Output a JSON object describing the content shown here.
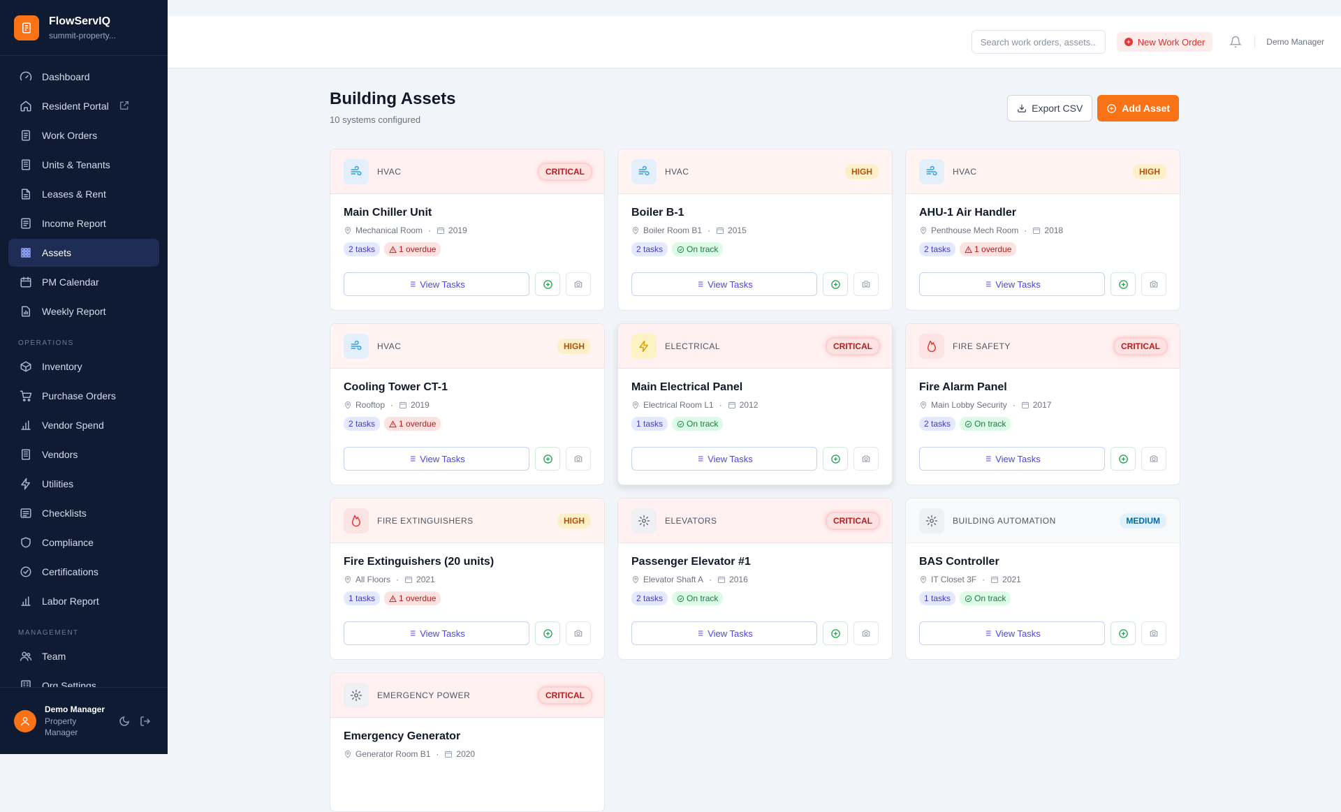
{
  "brand": {
    "name": "FlowServIQ",
    "subtitle": "summit-property..."
  },
  "nav": {
    "items": [
      {
        "label": "Dashboard",
        "icon": "gauge-icon"
      },
      {
        "label": "Resident Portal",
        "icon": "home-icon",
        "external": true
      },
      {
        "label": "Work Orders",
        "icon": "clipboard-icon"
      },
      {
        "label": "Units & Tenants",
        "icon": "building-icon"
      },
      {
        "label": "Leases & Rent",
        "icon": "document-icon"
      },
      {
        "label": "Income Report",
        "icon": "report-icon"
      },
      {
        "label": "Assets",
        "icon": "grid-icon",
        "active": true
      },
      {
        "label": "PM Calendar",
        "icon": "calendar-icon"
      },
      {
        "label": "Weekly Report",
        "icon": "file-chart-icon"
      }
    ],
    "operations_label": "OPERATIONS",
    "operations": [
      {
        "label": "Inventory",
        "icon": "box-icon"
      },
      {
        "label": "Purchase Orders",
        "icon": "cart-icon"
      },
      {
        "label": "Vendor Spend",
        "icon": "bar-chart-icon"
      },
      {
        "label": "Vendors",
        "icon": "building-icon"
      },
      {
        "label": "Utilities",
        "icon": "bolt-icon"
      },
      {
        "label": "Checklists",
        "icon": "checklist-icon"
      },
      {
        "label": "Compliance",
        "icon": "shield-icon"
      },
      {
        "label": "Certifications",
        "icon": "check-circle-icon"
      },
      {
        "label": "Labor Report",
        "icon": "bar-chart-icon"
      }
    ],
    "management_label": "MANAGEMENT",
    "management": [
      {
        "label": "Team",
        "icon": "users-icon"
      },
      {
        "label": "Org Settings",
        "icon": "settings-icon"
      }
    ]
  },
  "user": {
    "name": "Demo Manager",
    "role": "Property Manager"
  },
  "topbar": {
    "search_placeholder": "Search work orders, assets...",
    "new_work_order": "New Work Order",
    "user": "Demo Manager"
  },
  "page": {
    "title": "Building Assets",
    "subtitle": "10 systems configured",
    "export_label": "Export CSV",
    "add_label": "Add Asset"
  },
  "card_labels": {
    "view_tasks": "View Tasks"
  },
  "assets": [
    {
      "category": "HVAC",
      "icon": "wind-icon",
      "priority": "CRITICAL",
      "name": "Main Chiller Unit",
      "location": "Mechanical Room",
      "year": "2019",
      "tasks": "2 tasks",
      "status": "1 overdue",
      "status_type": "overdue"
    },
    {
      "category": "HVAC",
      "icon": "wind-icon",
      "priority": "HIGH",
      "name": "Boiler B-1",
      "location": "Boiler Room B1",
      "year": "2015",
      "tasks": "2 tasks",
      "status": "On track",
      "status_type": "ok"
    },
    {
      "category": "HVAC",
      "icon": "wind-icon",
      "priority": "HIGH",
      "name": "AHU-1 Air Handler",
      "location": "Penthouse Mech Room",
      "year": "2018",
      "tasks": "2 tasks",
      "status": "1 overdue",
      "status_type": "overdue"
    },
    {
      "category": "HVAC",
      "icon": "wind-icon",
      "priority": "HIGH",
      "name": "Cooling Tower CT-1",
      "location": "Rooftop",
      "year": "2019",
      "tasks": "2 tasks",
      "status": "1 overdue",
      "status_type": "overdue"
    },
    {
      "category": "ELECTRICAL",
      "icon": "bolt-icon",
      "priority": "CRITICAL",
      "name": "Main Electrical Panel",
      "location": "Electrical Room L1",
      "year": "2012",
      "tasks": "1 tasks",
      "status": "On track",
      "status_type": "ok"
    },
    {
      "category": "FIRE SAFETY",
      "icon": "flame-icon",
      "priority": "CRITICAL",
      "name": "Fire Alarm Panel",
      "location": "Main Lobby Security",
      "year": "2017",
      "tasks": "2 tasks",
      "status": "On track",
      "status_type": "ok"
    },
    {
      "category": "FIRE EXTINGUISHERS",
      "icon": "flame-icon",
      "priority": "HIGH",
      "name": "Fire Extinguishers (20 units)",
      "location": "All Floors",
      "year": "2021",
      "tasks": "1 tasks",
      "status": "1 overdue",
      "status_type": "overdue"
    },
    {
      "category": "ELEVATORS",
      "icon": "gear-icon",
      "priority": "CRITICAL",
      "name": "Passenger Elevator #1",
      "location": "Elevator Shaft A",
      "year": "2016",
      "tasks": "2 tasks",
      "status": "On track",
      "status_type": "ok"
    },
    {
      "category": "BUILDING AUTOMATION",
      "icon": "gear-icon",
      "priority": "MEDIUM",
      "name": "BAS Controller",
      "location": "IT Closet 3F",
      "year": "2021",
      "tasks": "1 tasks",
      "status": "On track",
      "status_type": "ok"
    },
    {
      "category": "EMERGENCY POWER",
      "icon": "gear-icon",
      "priority": "CRITICAL",
      "name": "Emergency Generator",
      "location": "Generator Room B1",
      "year": "2020",
      "tasks": "",
      "status": "",
      "status_type": ""
    }
  ],
  "colors": {
    "accent": "#f97316",
    "sidebar": "#0f1b33",
    "critical": "#b91c1c",
    "high": "#b45309",
    "medium": "#0369a1"
  }
}
